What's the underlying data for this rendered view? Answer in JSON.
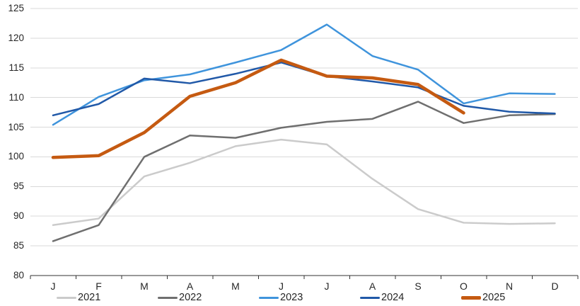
{
  "chart_data": {
    "type": "line",
    "title": "",
    "xlabel": "",
    "ylabel": "",
    "x_tick_labels": [
      "J",
      "F",
      "M",
      "A",
      "M",
      "J",
      "J",
      "A",
      "S",
      "O",
      "N",
      "D"
    ],
    "y_tick_labels": [
      "125",
      "120",
      "115",
      "110",
      "105",
      "100",
      "95",
      "90",
      "85",
      "80"
    ],
    "ylim": [
      80,
      125
    ],
    "y_step": 5,
    "grid": "horizontal",
    "legend_position": "bottom",
    "series": [
      {
        "name": "2021",
        "color": "#cbcbcb",
        "stroke_width": 2.5,
        "values": [
          88.5,
          89.6,
          96.7,
          99.0,
          101.8,
          102.9,
          102.1,
          96.3,
          91.2,
          88.9,
          88.7,
          88.8
        ]
      },
      {
        "name": "2022",
        "color": "#6f6f6f",
        "stroke_width": 2.5,
        "values": [
          85.8,
          88.5,
          100.0,
          103.6,
          103.2,
          104.9,
          105.9,
          106.4,
          109.3,
          105.7,
          107.0,
          107.2
        ]
      },
      {
        "name": "2023",
        "color": "#3f94dc",
        "stroke_width": 2.5,
        "values": [
          105.4,
          110.1,
          112.9,
          113.9,
          115.9,
          118.0,
          122.3,
          117.0,
          114.7,
          109.0,
          110.7,
          110.6
        ]
      },
      {
        "name": "2024",
        "color": "#2159a8",
        "stroke_width": 2.5,
        "values": [
          107.0,
          108.9,
          113.2,
          112.4,
          114.0,
          115.9,
          113.6,
          112.7,
          111.7,
          108.6,
          107.6,
          107.3
        ]
      },
      {
        "name": "2025",
        "color": "#c55a11",
        "stroke_width": 4.5,
        "values": [
          99.9,
          100.2,
          104.1,
          110.2,
          112.5,
          116.3,
          113.6,
          113.3,
          112.2,
          107.4,
          null,
          null
        ]
      }
    ],
    "colors": {
      "grid": "#d9d9d9",
      "axis": "#333333",
      "text": "#262626",
      "background": "#ffffff"
    }
  }
}
